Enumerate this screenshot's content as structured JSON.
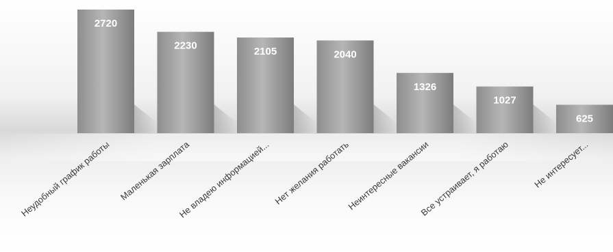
{
  "chart_data": {
    "type": "bar",
    "categories": [
      "Неудобный график работы",
      "Маленькая зарплата",
      "Не владею информацией...",
      "Нет желания работать",
      "Неинтересные вакансии",
      "Все устраивает, я работаю",
      "Не интересует..."
    ],
    "values": [
      2720,
      2230,
      2105,
      2040,
      1326,
      1027,
      625
    ],
    "title": "",
    "xlabel": "",
    "ylabel": "",
    "ylim": [
      0,
      2720
    ],
    "grid": false,
    "legend": "none",
    "colors": {
      "bar_light": "#b4b4b4",
      "bar_dark": "#7e7e7e",
      "label": "#ffffff",
      "category": "#3a3a3a"
    }
  }
}
